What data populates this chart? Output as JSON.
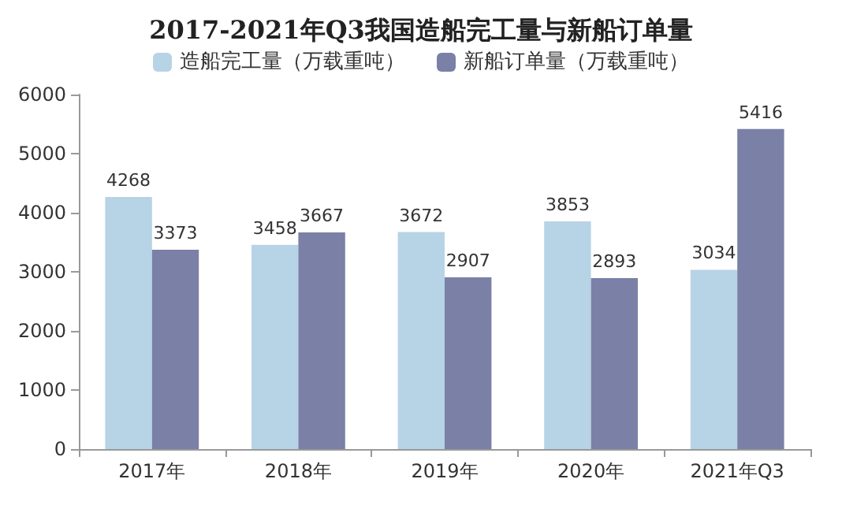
{
  "chart_data": {
    "type": "bar",
    "title": "2017-2021年Q3我国造船完工量与新船订单量",
    "categories": [
      "2017年",
      "2018年",
      "2019年",
      "2020年",
      "2021年Q3"
    ],
    "series": [
      {
        "name": "造船完工量（万载重吨）",
        "color": "#b7d3e6",
        "values": [
          4268,
          3458,
          3672,
          3853,
          3034
        ]
      },
      {
        "name": "新船订单量（万载重吨）",
        "color": "#7a80a6",
        "values": [
          3373,
          3667,
          2907,
          2893,
          5416
        ]
      }
    ],
    "ylim": [
      0,
      6000
    ],
    "yticks": [
      0,
      1000,
      2000,
      3000,
      4000,
      5000,
      6000
    ],
    "grid": false,
    "legend": "top",
    "data_labels": true
  }
}
